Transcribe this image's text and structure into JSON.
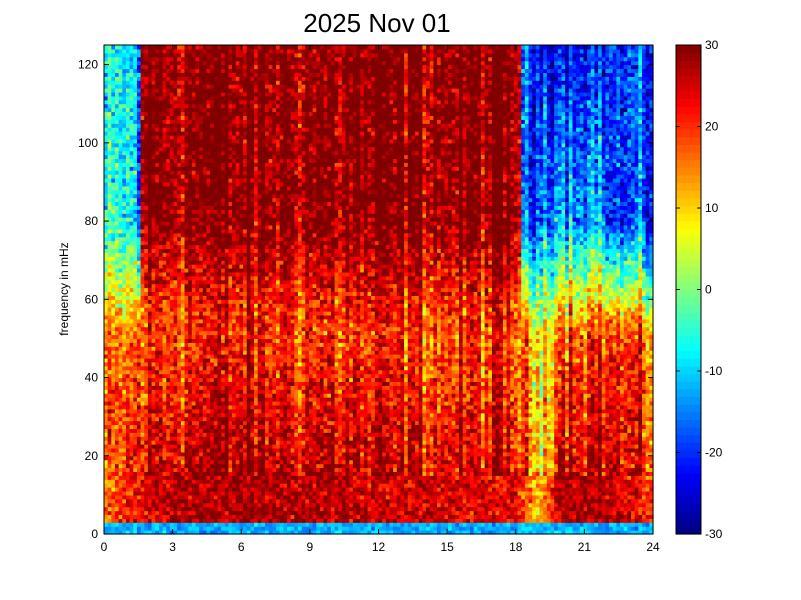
{
  "chart_data": {
    "type": "heatmap",
    "title": "2025 Nov 01",
    "xlabel": "",
    "ylabel": "frequency in mHz",
    "xlim": [
      0,
      24
    ],
    "ylim": [
      0,
      125
    ],
    "xticks": [
      0,
      3,
      6,
      9,
      12,
      15,
      18,
      21,
      24
    ],
    "yticks": [
      0,
      20,
      40,
      60,
      80,
      100,
      120
    ],
    "colorbar": {
      "clim": [
        -30,
        30
      ],
      "ticks": [
        30,
        20,
        10,
        0,
        -10,
        -20,
        -30
      ],
      "colormap": "jet",
      "colors": [
        "#00008f",
        "#0000ff",
        "#0080ff",
        "#00ffff",
        "#80ff80",
        "#ffff00",
        "#ff8000",
        "#ff0000",
        "#800000"
      ]
    },
    "grid": false,
    "description_values": {
      "x_time_hours": [
        0,
        2,
        4,
        6,
        8,
        10,
        12,
        14,
        16,
        18,
        19,
        20,
        22,
        24
      ],
      "high_freq_power_above_80mHz": [
        -10,
        28,
        24,
        22,
        20,
        24,
        28,
        28,
        26,
        28,
        0,
        -20,
        -15,
        -5
      ],
      "low_freq_power_below_15mHz": [
        15,
        25,
        28,
        28,
        27,
        27,
        25,
        25,
        24,
        24,
        10,
        28,
        27,
        20
      ]
    }
  }
}
